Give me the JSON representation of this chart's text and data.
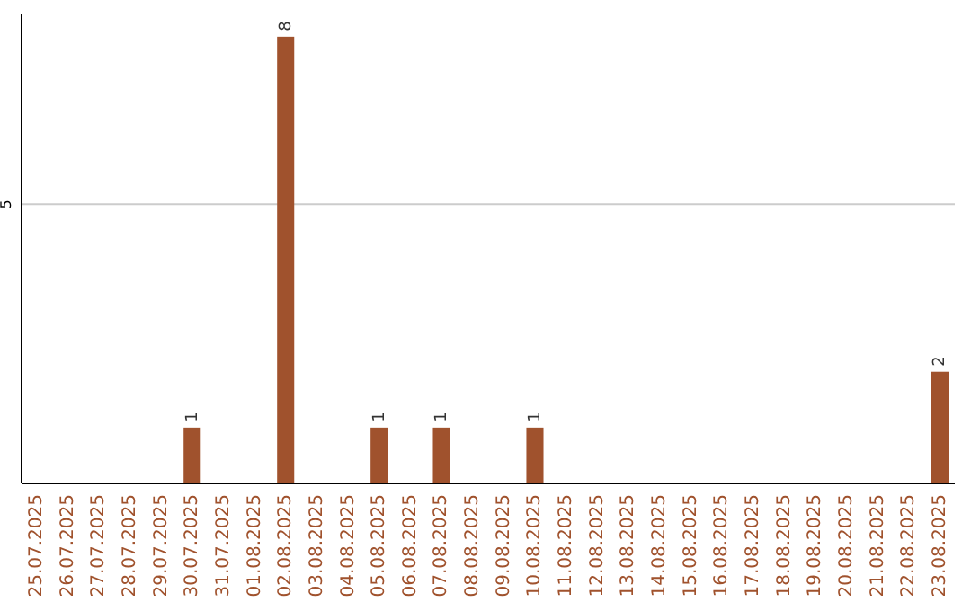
{
  "chart_data": {
    "type": "bar",
    "categories": [
      "25.07.2025",
      "26.07.2025",
      "27.07.2025",
      "28.07.2025",
      "29.07.2025",
      "30.07.2025",
      "31.07.2025",
      "01.08.2025",
      "02.08.2025",
      "03.08.2025",
      "04.08.2025",
      "05.08.2025",
      "06.08.2025",
      "07.08.2025",
      "08.08.2025",
      "09.08.2025",
      "10.08.2025",
      "11.08.2025",
      "12.08.2025",
      "13.08.2025",
      "14.08.2025",
      "15.08.2025",
      "16.08.2025",
      "17.08.2025",
      "18.08.2025",
      "19.08.2025",
      "20.08.2025",
      "21.08.2025",
      "22.08.2025",
      "23.08.2025"
    ],
    "values": [
      0,
      0,
      0,
      0,
      0,
      1,
      0,
      0,
      8,
      0,
      0,
      1,
      0,
      1,
      0,
      0,
      1,
      0,
      0,
      0,
      0,
      0,
      0,
      0,
      0,
      0,
      0,
      0,
      0,
      2
    ],
    "value_labels": [
      null,
      null,
      null,
      null,
      null,
      "1",
      null,
      null,
      "8",
      null,
      null,
      "1",
      null,
      "1",
      null,
      null,
      "1",
      null,
      null,
      null,
      null,
      null,
      null,
      null,
      null,
      null,
      null,
      null,
      null,
      "2"
    ],
    "color": "#a0522d",
    "ylim": [
      0,
      8.4
    ],
    "yticks": [
      5
    ],
    "grid": "y"
  }
}
